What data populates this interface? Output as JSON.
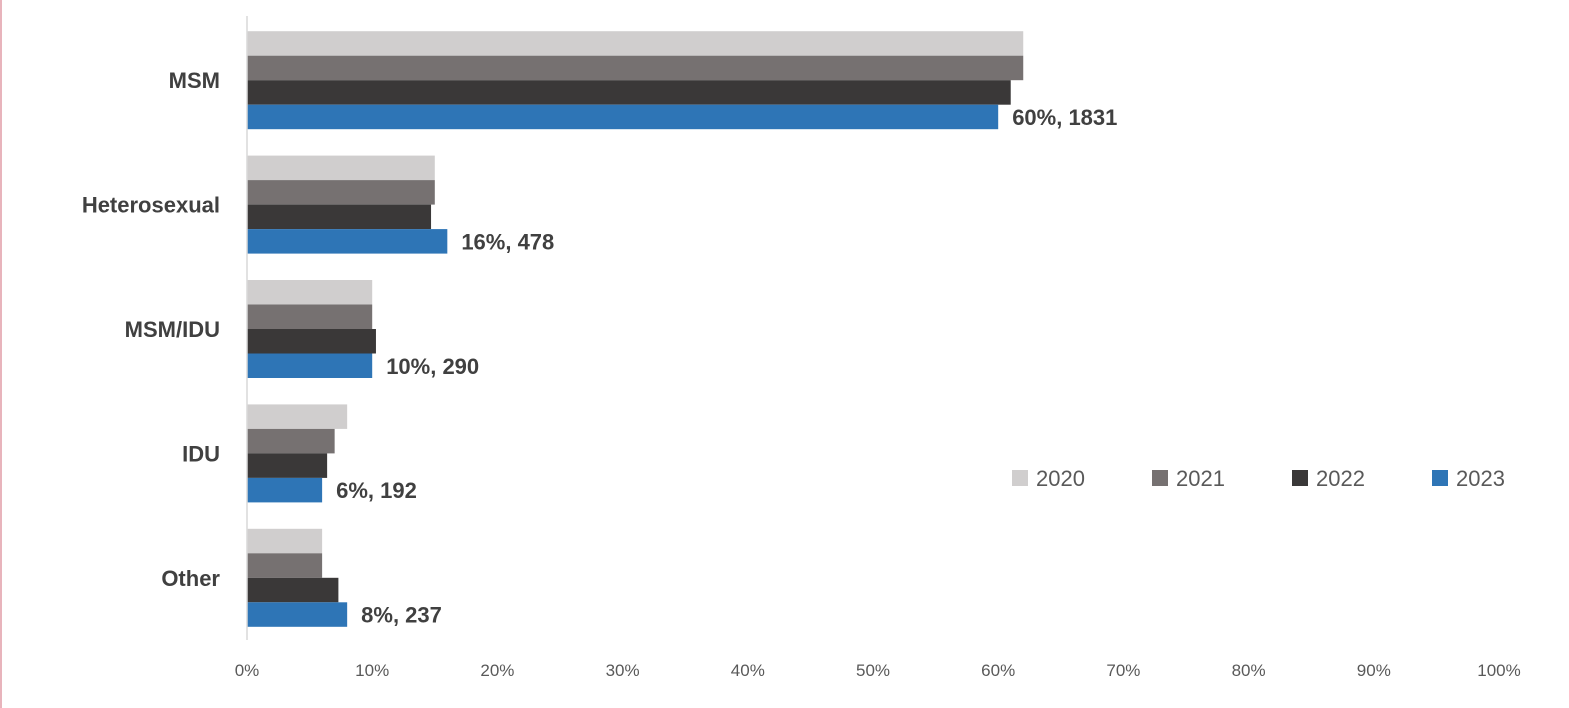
{
  "chart_data": {
    "type": "bar",
    "orientation": "horizontal",
    "categories": [
      "MSM",
      "Heterosexual",
      "MSM/IDU",
      "IDU",
      "Other"
    ],
    "series": [
      {
        "name": "2020",
        "color": "#d0cece",
        "values": [
          62,
          15,
          10,
          8,
          6
        ]
      },
      {
        "name": "2021",
        "color": "#767171",
        "values": [
          62,
          15,
          10,
          7,
          6
        ]
      },
      {
        "name": "2022",
        "color": "#3a3838",
        "values": [
          61,
          14.7,
          10.3,
          6.4,
          7.3
        ]
      },
      {
        "name": "2023",
        "color": "#2e75b6",
        "values": [
          60,
          16,
          10,
          6,
          8
        ]
      }
    ],
    "data_labels": {
      "series": "2023",
      "labels": [
        "60%, 1831",
        "16%, 478",
        "10%, 290",
        "6%, 192",
        "8%, 237"
      ]
    },
    "xlim": [
      0,
      100
    ],
    "xticks": [
      0,
      10,
      20,
      30,
      40,
      50,
      60,
      70,
      80,
      90,
      100
    ],
    "xtick_labels": [
      "0%",
      "10%",
      "20%",
      "30%",
      "40%",
      "50%",
      "60%",
      "70%",
      "80%",
      "90%",
      "100%"
    ],
    "legend": {
      "placement": "right, inside plot area, level with IDU",
      "entries": [
        "2020",
        "2021",
        "2022",
        "2023"
      ]
    },
    "grid": false,
    "title": "",
    "xlabel": "",
    "ylabel": ""
  }
}
